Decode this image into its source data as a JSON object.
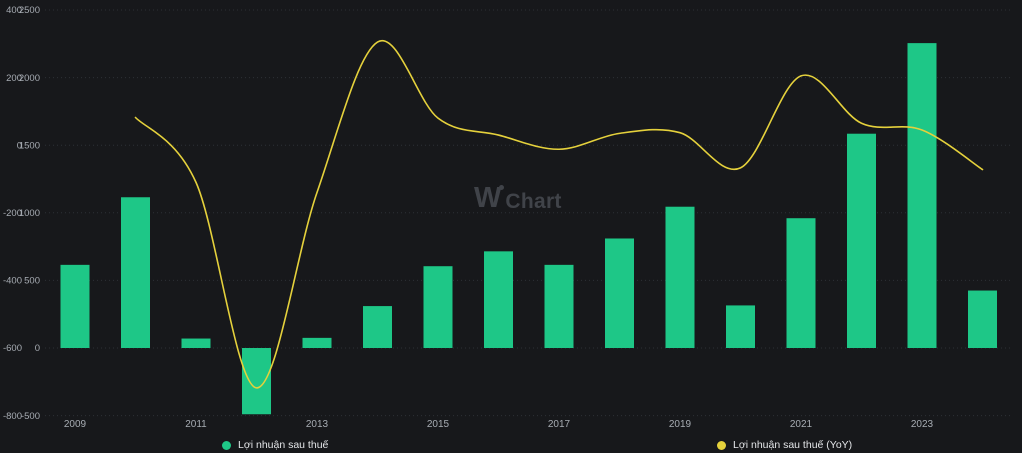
{
  "watermark": {
    "w": "W",
    "rest": "Chart"
  },
  "legend": {
    "bars_label": "Lợi nhuận sau thuế",
    "line_label": "Lợi nhuận sau thuế (YoY)"
  },
  "colors": {
    "background": "#17181b",
    "bar": "#1ec787",
    "line": "#e5d13c",
    "grid": "#2d3036",
    "axis_text": "#a7acb3",
    "legend_text": "#e4e6e9",
    "watermark": "#404349"
  },
  "chart_data": {
    "type": "bar",
    "subtype": "bar-with-line-overlay",
    "title": "",
    "categories": [
      2009,
      2010,
      2011,
      2012,
      2013,
      2014,
      2015,
      2016,
      2017,
      2018,
      2019,
      2020,
      2021,
      2022,
      2023,
      2024
    ],
    "x_tick_labels": [
      "2009",
      "2011",
      "2013",
      "2015",
      "2017",
      "2019",
      "2021",
      "2023"
    ],
    "series": [
      {
        "name": "Lợi nhuận sau thuế",
        "type": "bar",
        "axis": "value",
        "color": "#1ec787",
        "values": [
          615,
          1115,
          70,
          -490,
          75,
          310,
          605,
          715,
          615,
          810,
          1045,
          315,
          960,
          1585,
          2255,
          425
        ]
      },
      {
        "name": "Lợi nhuận sau thuế (YoY)",
        "type": "line",
        "axis": "yoy_percent",
        "color": "#e5d13c",
        "unit": "%",
        "values": [
          null,
          82,
          -110,
          -718,
          -140,
          305,
          80,
          30,
          -12,
          35,
          37,
          -67,
          205,
          65,
          45,
          -72
        ]
      }
    ],
    "axes": {
      "yoy_percent": {
        "side": "left-outer",
        "ticks": [
          400,
          200,
          0,
          -200,
          -400,
          -600,
          -800
        ],
        "range": [
          -800,
          400
        ]
      },
      "value": {
        "side": "left-inner",
        "ticks": [
          2500,
          2000,
          1500,
          1000,
          500,
          0,
          -500
        ],
        "range": [
          -500,
          2500
        ]
      }
    },
    "grid": "horizontal-dotted",
    "legend_position": "bottom"
  }
}
